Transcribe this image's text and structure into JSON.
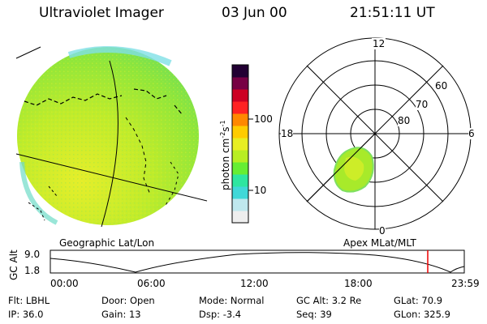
{
  "header": {
    "instrument": "Ultraviolet Imager",
    "date": "03 Jun 00",
    "time": "21:51:11 UT"
  },
  "colorbar": {
    "unit_label": "photon cm",
    "unit_sup1": "-2",
    "unit_mid": "s",
    "unit_sup2": "-1",
    "tick_high": "100",
    "tick_low": "10",
    "colors": [
      "#eeeeee",
      "#bfe8ee",
      "#40d8d8",
      "#2ee6a0",
      "#66ee33",
      "#b8ee22",
      "#e8ee22",
      "#ffcc00",
      "#ff8800",
      "#ff2222",
      "#cc0022",
      "#770044",
      "#220033"
    ]
  },
  "polar_plot": {
    "label_top": "12",
    "label_left": "18",
    "label_right": "6",
    "label_bottom": "0",
    "lat_60": "60",
    "lat_70": "70",
    "lat_80": "80"
  },
  "panel_labels": {
    "left": "Geographic Lat/Lon",
    "right": "Apex MLat/MLT"
  },
  "altitude_strip": {
    "ylabel": "GC Alt",
    "ytick_high": "9.0",
    "ytick_low": "1.8",
    "x_ticks": [
      "00:00",
      "06:00",
      "12:00",
      "18:00",
      "23:59"
    ]
  },
  "footer": {
    "row1": [
      {
        "key": "Flt:",
        "value": "LBHL"
      },
      {
        "key": "Door:",
        "value": "Open"
      },
      {
        "key": "Mode:",
        "value": "Normal"
      },
      {
        "key": "GC Alt:",
        "value": "3.2 Re"
      },
      {
        "key": "GLat:",
        "value": "70.9"
      }
    ],
    "row2": [
      {
        "key": "IP:",
        "value": "36.0"
      },
      {
        "key": "Gain:",
        "value": "13"
      },
      {
        "key": "Dsp:",
        "value": "-3.4"
      },
      {
        "key": "Seq:",
        "value": "39"
      },
      {
        "key": "GLon:",
        "value": "325.9"
      }
    ]
  }
}
